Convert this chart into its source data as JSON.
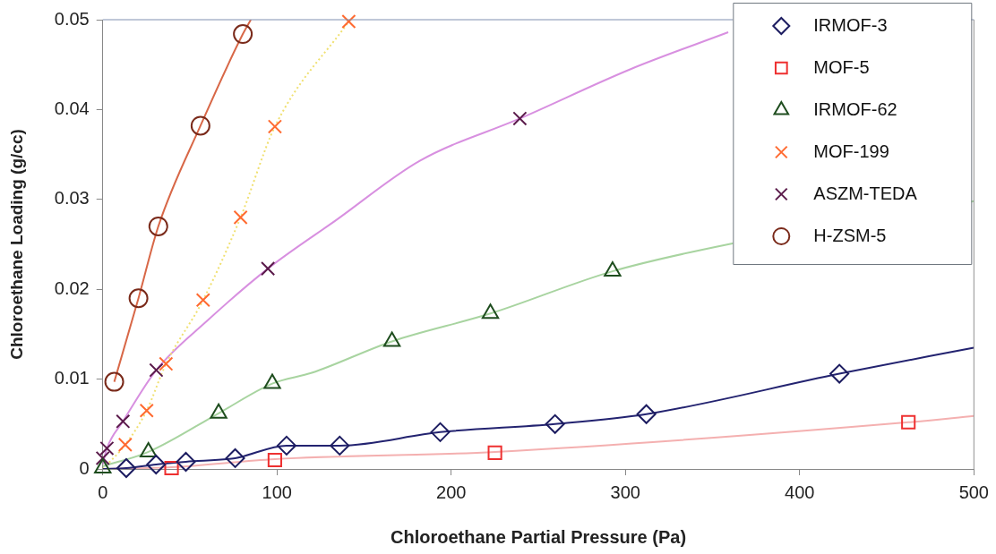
{
  "chart_data": {
    "type": "scatter",
    "xlabel": "Chloroethane Partial Pressure (Pa)",
    "ylabel": "Chloroethane Loading (g/cc)",
    "xlim": [
      0,
      500
    ],
    "xticks": [
      0,
      100,
      200,
      300,
      400,
      500
    ],
    "ylim": [
      0,
      0.05
    ],
    "yticks": [
      0,
      0.01,
      0.02,
      0.03,
      0.04,
      0.05
    ],
    "grid": false,
    "legend": "top right",
    "series": [
      {
        "type": "line",
        "color": "#232370",
        "marker": "none",
        "line_style": "solid",
        "x": [
          0,
          13.5,
          30.6,
          47.7,
          76,
          105.5,
          136,
          193.7,
          259.6,
          312,
          422.8,
          500
        ],
        "values": [
          0,
          0.0001,
          0.0005,
          0.0008,
          0.0012,
          0.0026,
          0.0026,
          0.0041,
          0.005,
          0.0061,
          0.0106,
          0.0135
        ]
      },
      {
        "type": "line",
        "color": "#f4b0b0",
        "marker": "none",
        "line_style": "solid",
        "x": [
          0,
          39.5,
          98.8,
          225.1,
          462.4,
          500
        ],
        "values": [
          0,
          0.0002,
          0.0011,
          0.0019,
          0.0052,
          0.0059
        ]
      },
      {
        "type": "line",
        "color": "#a8d4a0",
        "marker": "none",
        "line_style": "solid",
        "x": [
          0,
          26.2,
          66.5,
          97.3,
          120,
          166,
          222.5,
          292.6,
          359,
          500
        ],
        "values": [
          0.0003,
          0.0019,
          0.0062,
          0.0095,
          0.0107,
          0.0142,
          0.0173,
          0.022,
          0.025,
          0.0298
        ]
      },
      {
        "type": "line",
        "color": "#f0e070",
        "marker": "none",
        "line_style": "dotted",
        "x": [
          0,
          12.9,
          25.2,
          36.3,
          57.6,
          79.1,
          98.8,
          141.2
        ],
        "values": [
          0,
          0.0027,
          0.0065,
          0.0117,
          0.0188,
          0.028,
          0.0381,
          0.0498
        ]
      },
      {
        "type": "line",
        "color": "#d890e0",
        "marker": "none",
        "line_style": "solid",
        "x": [
          0,
          2.4,
          11.6,
          30.7,
          60,
          94.8,
          134,
          182,
          239.4,
          303,
          359
        ],
        "values": [
          0.0005,
          0.0023,
          0.0053,
          0.011,
          0.0165,
          0.0223,
          0.0277,
          0.0343,
          0.039,
          0.0445,
          0.0486
        ]
      },
      {
        "type": "line",
        "color": "#d86848",
        "marker": "none",
        "line_style": "solid",
        "x": [
          6.6,
          20.5,
          31.9,
          56.1,
          80.4,
          85
        ],
        "values": [
          0.0097,
          0.019,
          0.027,
          0.0382,
          0.0484,
          0.05
        ]
      },
      {
        "name": "IRMOF-3",
        "color": "#1c1c60",
        "marker": "diamond",
        "x": [
          13.5,
          30.6,
          47.7,
          76,
          105.5,
          136,
          193.7,
          259.6,
          312,
          422.8
        ],
        "values": [
          0.0001,
          0.0005,
          0.0008,
          0.0012,
          0.0026,
          0.0026,
          0.0041,
          0.005,
          0.0061,
          0.0106
        ]
      },
      {
        "name": "MOF-5",
        "color": "#ee3030",
        "marker": "square",
        "x": [
          39.5,
          98.8,
          225.1,
          462.4
        ],
        "values": [
          0.0001,
          0.001,
          0.0018,
          0.0052
        ]
      },
      {
        "name": "IRMOF-62",
        "color": "#1e4d1e",
        "marker": "triangle",
        "x": [
          0,
          26.2,
          66.5,
          97.3,
          166,
          222.5,
          292.6
        ],
        "values": [
          0.0001,
          0.0019,
          0.0062,
          0.0095,
          0.0142,
          0.0173,
          0.022
        ]
      },
      {
        "name": "MOF-199",
        "color": "#ff6a30",
        "marker": "cross",
        "x": [
          12.9,
          25.2,
          36.3,
          57.6,
          79.1,
          98.8,
          141.2
        ],
        "values": [
          0.0027,
          0.0065,
          0.0117,
          0.0188,
          0.028,
          0.0381,
          0.0498
        ]
      },
      {
        "name": "ASZM-TEDA",
        "color": "#5a1a4a",
        "marker": "cross",
        "x": [
          0,
          2.4,
          11.6,
          30.7,
          94.8,
          239.4
        ],
        "values": [
          0.0012,
          0.0023,
          0.0053,
          0.011,
          0.0223,
          0.039
        ]
      },
      {
        "name": "H-ZSM-5",
        "color": "#7a2a1a",
        "marker": "circle",
        "x": [
          6.6,
          20.5,
          31.9,
          56.1,
          80.4
        ],
        "values": [
          0.0097,
          0.019,
          0.027,
          0.0382,
          0.0484
        ]
      }
    ]
  }
}
